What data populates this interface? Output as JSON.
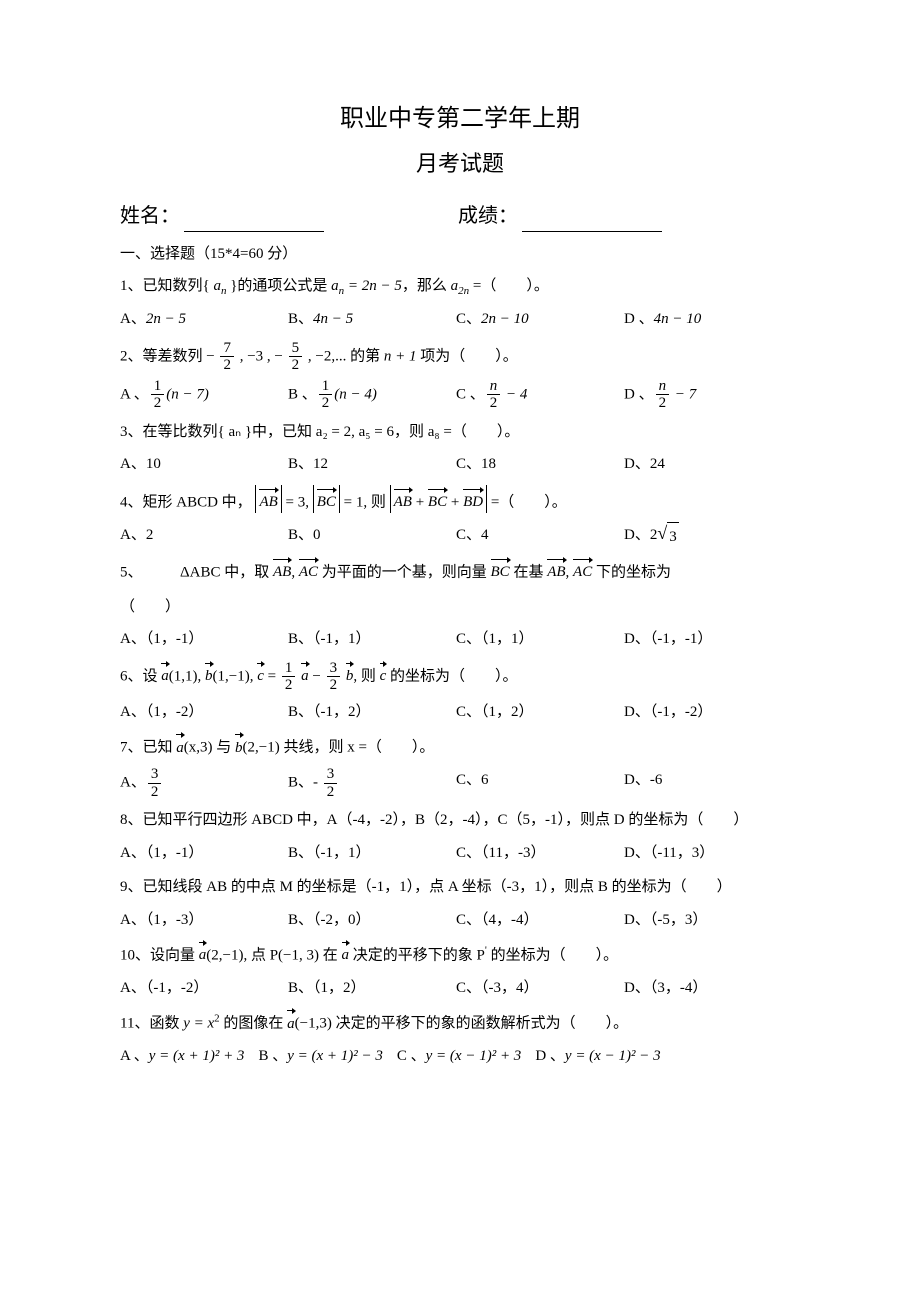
{
  "title_main": "职业中专第二学年上期",
  "title_sub": "月考试题",
  "name_label": "姓名：",
  "score_label": "成绩：",
  "section1_header": "一、选择题（15*4=60 分）",
  "q1": {
    "stem_pre": "1、已知数列{ ",
    "var": "a",
    "sub": "n",
    "stem_mid": " }的通项公式是 ",
    "eq": "aₙ = 2n − 5",
    "stem_post": "，那么 ",
    "a2n": "a",
    "a2n_sub": "2n",
    "tail": " =（　　）。",
    "A": "2n − 5",
    "B": "4n − 5",
    "C": "2n − 10",
    "D": "4n − 10"
  },
  "q2": {
    "stem_lead": "2、等差数列 − ",
    "f1n": "7",
    "f1d": "2",
    "mid1": " , −3 , − ",
    "f2n": "5",
    "f2d": "2",
    "mid2": " , −2,...  的第 ",
    "np1": "n + 1",
    "tail": " 项为（　　）。",
    "A_f_n": "1",
    "A_f_d": "2",
    "A_body": "(n − 7)",
    "B_f_n": "1",
    "B_f_d": "2",
    "B_body": "(n − 4)",
    "C_f_n": "n",
    "C_f_d": "2",
    "C_body": " − 4",
    "D_f_n": "n",
    "D_f_d": "2",
    "D_body": " − 7"
  },
  "q3": {
    "stem": "3、在等比数列{ aₙ }中，已知 a₂ = 2, a₅ = 6，则 a₈ =（　　）。",
    "A": "10",
    "B": "12",
    "C": "18",
    "D": "24"
  },
  "q4": {
    "lead": "4、矩形 ABCD 中，",
    "ab": "AB",
    "ab_val": " = 3, ",
    "bc": "BC",
    "bc_val": " = 1, 则 ",
    "sum1": "AB",
    "sum2": "BC",
    "sum3": "BD",
    "tail": " =（　　）。",
    "A": "2",
    "B": "0",
    "C": "4",
    "D_pre": "2",
    "D_rad": "3"
  },
  "q5": {
    "lead": "5、　　　ΔABC 中，取 ",
    "ab": "AB",
    "ac": "AC",
    "mid": " 为平面的一个基，则向量 ",
    "bc": "BC",
    "mid2": " 在基 ",
    "ab2": "AB",
    "ac2": "AC",
    "tail": " 下的坐标为",
    "paren": "（　　）",
    "A": "（1，-1）",
    "B": "（-1，1）",
    "C": "（1，1）",
    "D": "（-1，-1）"
  },
  "q6": {
    "lead": "6、设 ",
    "a": "a",
    "aval": "(1,1), ",
    "b": "b",
    "bval": "(1,−1), ",
    "c": "c",
    "eq": " = ",
    "f1n": "1",
    "f1d": "2",
    "avar": "a",
    "minus": " − ",
    "f2n": "3",
    "f2d": "2",
    "bvar": "b",
    "mid": ", 则 ",
    "cvar": "c",
    "tail": " 的坐标为（　　）。",
    "A": "（1，-2）",
    "B": "（-1，2）",
    "C": "（1，2）",
    "D": "（-1，-2）"
  },
  "q7": {
    "lead": "7、已知 ",
    "a": "a",
    "aval": "(x,3) 与 ",
    "b": "b",
    "bval": "(2,−1) 共线，则 x =（　　）。",
    "A_n": "3",
    "A_d": "2",
    "B_pre": "- ",
    "B_n": "3",
    "B_d": "2",
    "C": "6",
    "D": "-6"
  },
  "q8": {
    "stem": "8、已知平行四边形 ABCD 中，A（-4，-2），B（2，-4），C（5，-1），则点 D 的坐标为（　　）",
    "A": "（1，-1）",
    "B": "（-1，1）",
    "C": "（11，-3）",
    "D": "（-11，3）"
  },
  "q9": {
    "stem": "9、已知线段 AB 的中点 M 的坐标是（-1，1），点 A 坐标（-3，1），则点 B 的坐标为（　　）",
    "A": "（1，-3）",
    "B": "（-2，0）",
    "C": "（4，-4）",
    "D": "（-5，3）"
  },
  "q10": {
    "lead": "10、设向量 ",
    "a": "a",
    "aval": "(2,−1), 点 P(−1, 3) 在 ",
    "a2": "a",
    "mid": " 决定的平移下的象 P",
    "prime": "'",
    "tail": " 的坐标为（　　）。",
    "A": "（-1，-2）",
    "B": "（1，2）",
    "C": "（-3，4）",
    "D": "（3，-4）"
  },
  "q11": {
    "lead": "11、函数 ",
    "y": "y = x",
    "sq": "2",
    "mid1": " 的图像在 ",
    "a": "a",
    "aval": "(−1,3) 决定的平移下的象的函数解析式为（　　）。",
    "A": "y = (x + 1)² + 3",
    "B": "y = (x + 1)² − 3",
    "C": "y = (x − 1)² + 3",
    "D": "y = (x − 1)² − 3"
  },
  "labels": {
    "A": "A、",
    "B": "B、",
    "C": "C、",
    "D": "D、",
    "Adot": "A 、",
    "Bdot": "B 、",
    "Cdot": "C 、",
    "Ddot": "D 、"
  }
}
